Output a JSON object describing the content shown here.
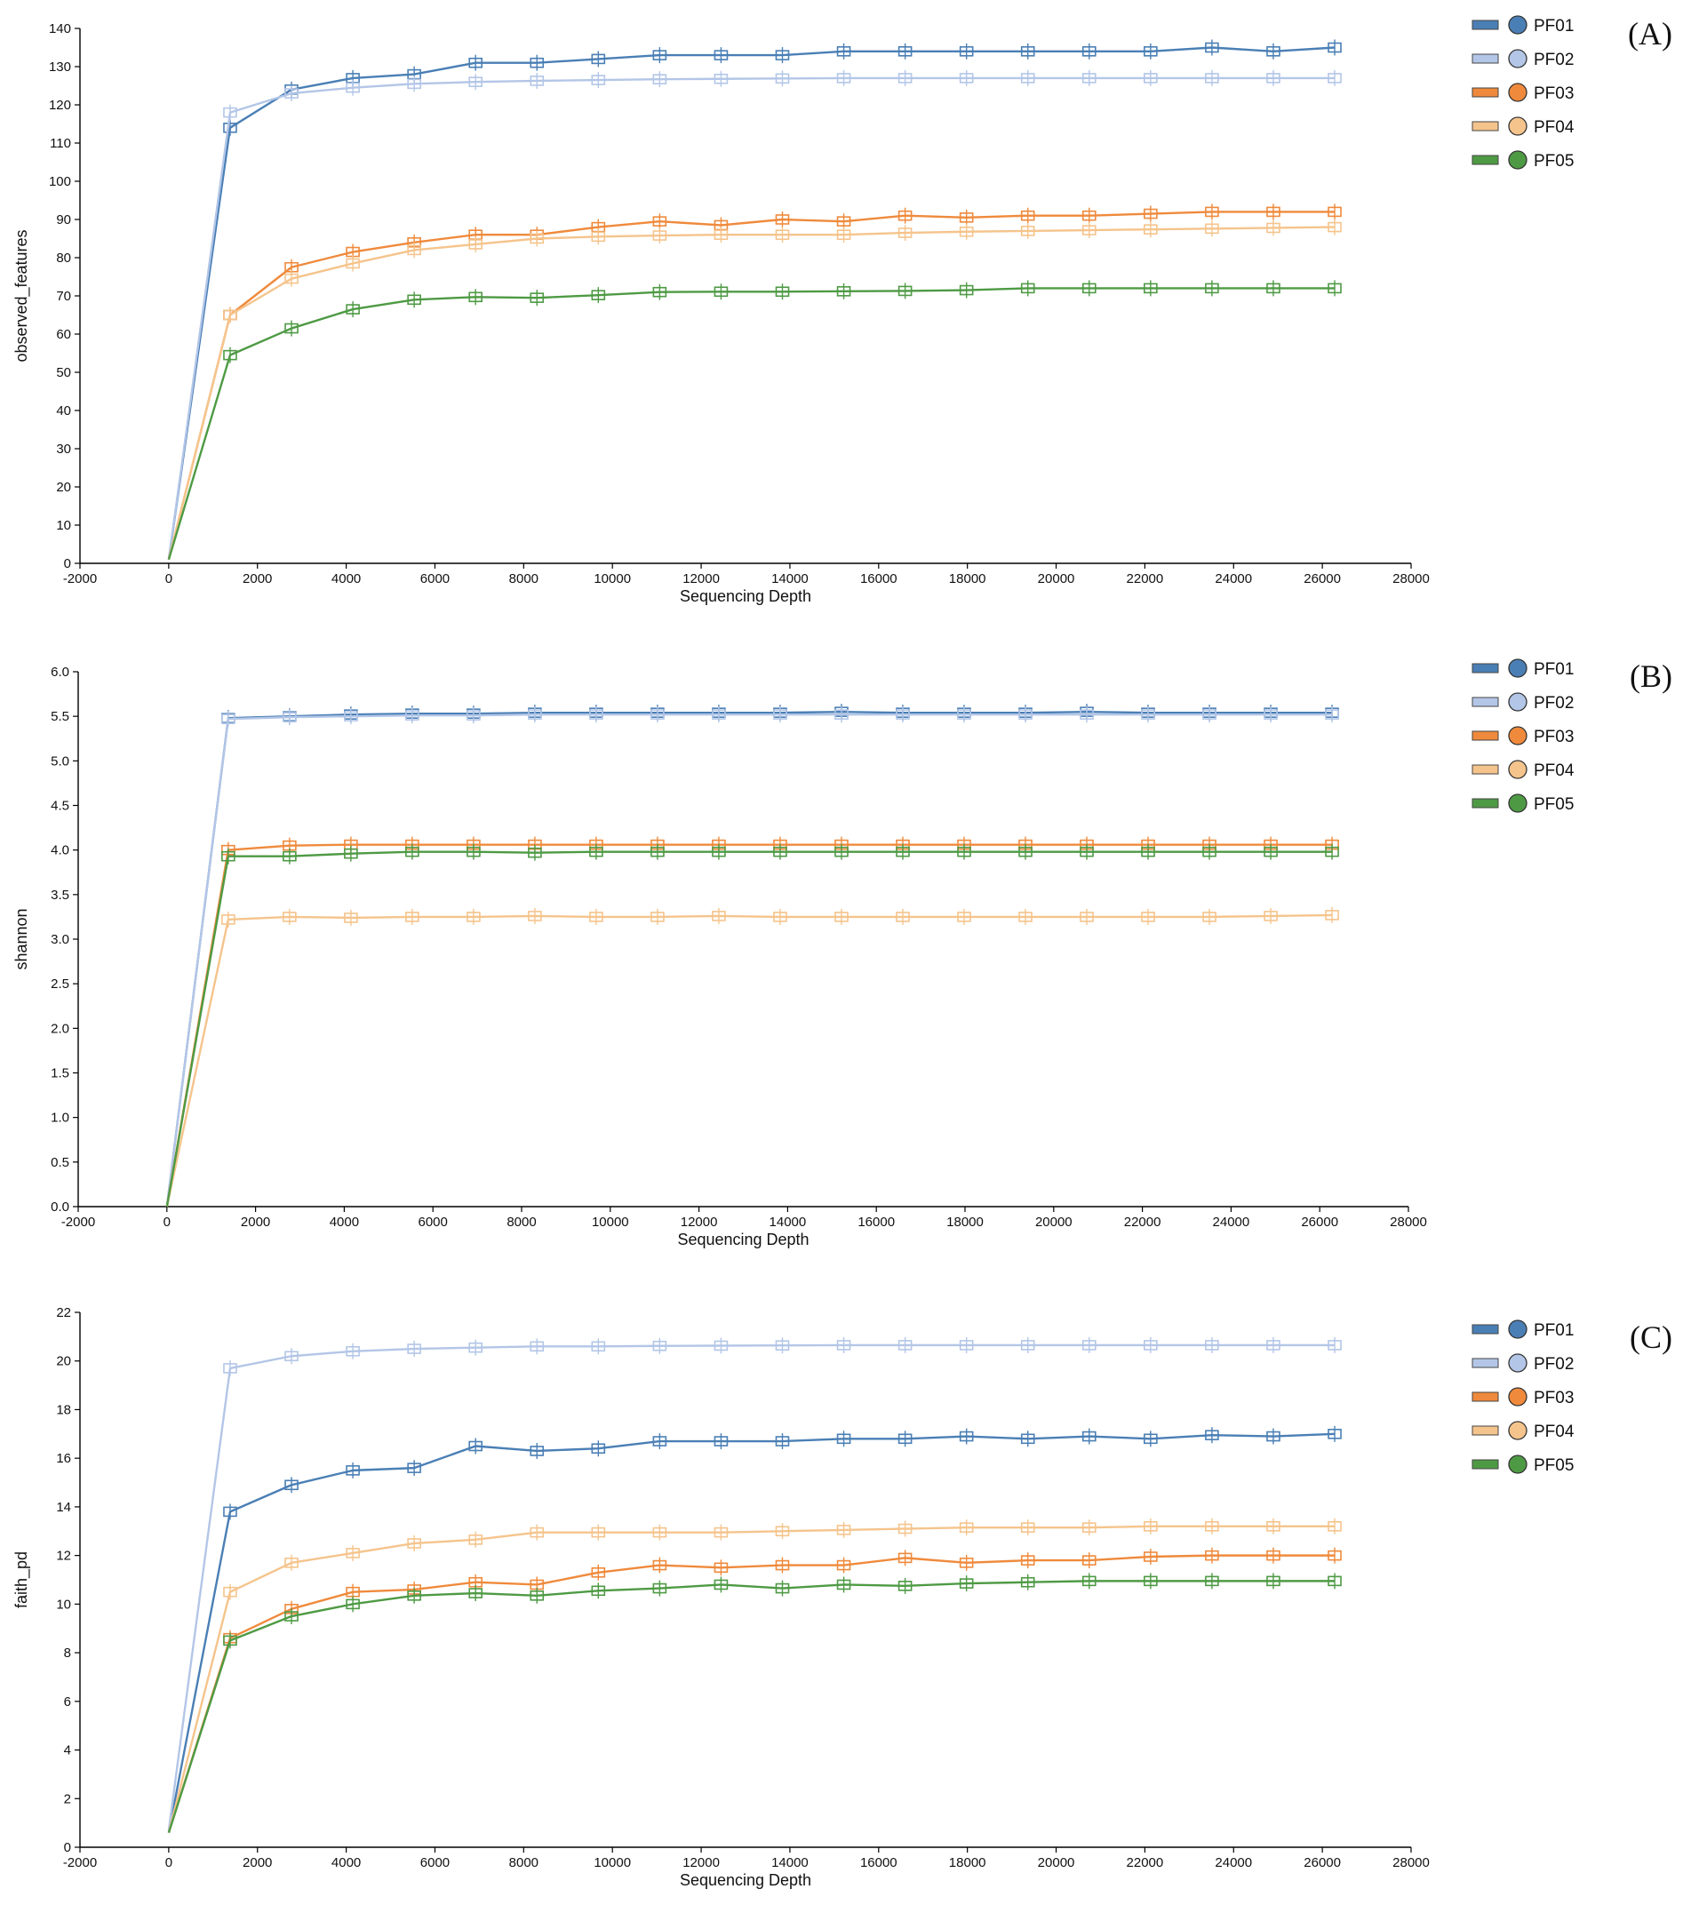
{
  "colors": {
    "PF01": "#4a7fb5",
    "PF02": "#b3c6e7",
    "PF03": "#ef8a3c",
    "PF04": "#f5c48c",
    "PF05": "#4e9a44"
  },
  "legend_icons": [
    "line-swatch",
    "circle-marker"
  ],
  "chart_data": [
    {
      "type": "line",
      "panel_label": "(A)",
      "xlabel": "Sequencing Depth",
      "ylabel": "observed_features",
      "xlim": [
        -2000,
        28000
      ],
      "ylim": [
        0,
        140
      ],
      "xticks": [
        "-2000",
        "0",
        "2000",
        "4000",
        "6000",
        "8000",
        "10000",
        "12000",
        "14000",
        "16000",
        "18000",
        "20000",
        "22000",
        "24000",
        "26000",
        "28000"
      ],
      "yticks": [
        "0",
        "10",
        "20",
        "30",
        "40",
        "50",
        "60",
        "70",
        "80",
        "90",
        "100",
        "110",
        "120",
        "130",
        "140"
      ],
      "grid": false,
      "legend_position": "right",
      "x": [
        1,
        1384,
        2767,
        4150,
        5533,
        6916,
        8299,
        9682,
        11065,
        12448,
        13831,
        15214,
        16597,
        17980,
        19363,
        20746,
        22129,
        23512,
        24895,
        26278
      ],
      "series": [
        {
          "name": "PF01",
          "values": [
            1,
            114,
            124,
            127,
            128,
            131,
            131,
            132,
            133,
            133,
            133,
            134,
            134,
            134,
            134,
            134,
            134,
            135,
            134,
            135
          ]
        },
        {
          "name": "PF02",
          "values": [
            1,
            118,
            123,
            124.5,
            125.5,
            126,
            126.3,
            126.5,
            126.7,
            126.8,
            126.9,
            127,
            127,
            127,
            127,
            127,
            127,
            127,
            127,
            127
          ]
        },
        {
          "name": "PF03",
          "values": [
            1,
            65,
            77.5,
            81.5,
            84,
            86,
            86,
            88,
            89.5,
            88.5,
            90,
            89.5,
            91,
            90.5,
            91,
            91,
            91.5,
            92,
            92,
            92
          ]
        },
        {
          "name": "PF04",
          "values": [
            1,
            65,
            74.5,
            78.5,
            82,
            83.5,
            85,
            85.5,
            85.8,
            86,
            86,
            86,
            86.5,
            86.8,
            87,
            87.2,
            87.4,
            87.6,
            87.8,
            88
          ]
        },
        {
          "name": "PF05",
          "values": [
            1,
            54.5,
            61.5,
            66.5,
            69,
            69.7,
            69.5,
            70.2,
            71,
            71.1,
            71.1,
            71.2,
            71.3,
            71.5,
            72,
            72,
            72,
            72,
            72,
            72
          ]
        }
      ]
    },
    {
      "type": "line",
      "panel_label": "(B)",
      "xlabel": "Sequencing Depth",
      "ylabel": "shannon",
      "xlim": [
        -2000,
        28000
      ],
      "ylim": [
        0,
        6
      ],
      "xticks": [
        "-2000",
        "0",
        "2000",
        "4000",
        "6000",
        "8000",
        "10000",
        "12000",
        "14000",
        "16000",
        "18000",
        "20000",
        "22000",
        "24000",
        "26000",
        "28000"
      ],
      "yticks": [
        "0.0",
        "0.5",
        "1.0",
        "1.5",
        "2.0",
        "2.5",
        "3.0",
        "3.5",
        "4.0",
        "4.5",
        "5.0",
        "5.5",
        "6.0"
      ],
      "grid": false,
      "legend_position": "right",
      "x": [
        1,
        1384,
        2767,
        4150,
        5533,
        6916,
        8299,
        9682,
        11065,
        12448,
        13831,
        15214,
        16597,
        17980,
        19363,
        20746,
        22129,
        23512,
        24895,
        26278
      ],
      "series": [
        {
          "name": "PF01",
          "values": [
            0,
            5.48,
            5.5,
            5.52,
            5.53,
            5.53,
            5.54,
            5.54,
            5.54,
            5.54,
            5.54,
            5.55,
            5.54,
            5.54,
            5.54,
            5.55,
            5.54,
            5.54,
            5.54,
            5.54
          ]
        },
        {
          "name": "PF02",
          "values": [
            0,
            5.47,
            5.49,
            5.5,
            5.51,
            5.51,
            5.52,
            5.52,
            5.52,
            5.52,
            5.52,
            5.52,
            5.52,
            5.52,
            5.52,
            5.52,
            5.52,
            5.52,
            5.52,
            5.52
          ]
        },
        {
          "name": "PF03",
          "values": [
            0,
            4.0,
            4.05,
            4.06,
            4.06,
            4.06,
            4.06,
            4.06,
            4.06,
            4.06,
            4.06,
            4.06,
            4.06,
            4.06,
            4.06,
            4.06,
            4.06,
            4.06,
            4.06,
            4.06
          ]
        },
        {
          "name": "PF04",
          "values": [
            0,
            3.22,
            3.25,
            3.24,
            3.25,
            3.25,
            3.26,
            3.25,
            3.25,
            3.26,
            3.25,
            3.25,
            3.25,
            3.25,
            3.25,
            3.25,
            3.25,
            3.25,
            3.26,
            3.27
          ]
        },
        {
          "name": "PF05",
          "values": [
            0,
            3.93,
            3.93,
            3.96,
            3.98,
            3.98,
            3.97,
            3.98,
            3.98,
            3.98,
            3.98,
            3.98,
            3.98,
            3.98,
            3.98,
            3.98,
            3.98,
            3.98,
            3.98,
            3.98
          ]
        }
      ]
    },
    {
      "type": "line",
      "panel_label": "(C)",
      "xlabel": "Sequencing Depth",
      "ylabel": "faith_pd",
      "xlim": [
        -2000,
        28000
      ],
      "ylim": [
        0,
        22
      ],
      "xticks": [
        "-2000",
        "0",
        "2000",
        "4000",
        "6000",
        "8000",
        "10000",
        "12000",
        "14000",
        "16000",
        "18000",
        "20000",
        "22000",
        "24000",
        "26000",
        "28000"
      ],
      "yticks": [
        "0",
        "2",
        "4",
        "6",
        "8",
        "10",
        "12",
        "14",
        "16",
        "18",
        "20",
        "22"
      ],
      "grid": false,
      "legend_position": "right",
      "x": [
        1,
        1384,
        2767,
        4150,
        5533,
        6916,
        8299,
        9682,
        11065,
        12448,
        13831,
        15214,
        16597,
        17980,
        19363,
        20746,
        22129,
        23512,
        24895,
        26278
      ],
      "series": [
        {
          "name": "PF01",
          "values": [
            0.6,
            13.8,
            14.9,
            15.5,
            15.6,
            16.5,
            16.3,
            16.4,
            16.7,
            16.7,
            16.7,
            16.8,
            16.8,
            16.9,
            16.8,
            16.9,
            16.8,
            16.95,
            16.9,
            17.0
          ]
        },
        {
          "name": "PF02",
          "values": [
            0.7,
            19.7,
            20.2,
            20.4,
            20.5,
            20.55,
            20.6,
            20.6,
            20.62,
            20.63,
            20.64,
            20.65,
            20.65,
            20.65,
            20.65,
            20.65,
            20.65,
            20.65,
            20.65,
            20.65
          ]
        },
        {
          "name": "PF03",
          "values": [
            0.6,
            8.6,
            9.8,
            10.5,
            10.6,
            10.9,
            10.8,
            11.3,
            11.6,
            11.5,
            11.6,
            11.6,
            11.9,
            11.7,
            11.8,
            11.8,
            11.95,
            12.0,
            12.0,
            12.0
          ]
        },
        {
          "name": "PF04",
          "values": [
            0.6,
            10.5,
            11.7,
            12.1,
            12.5,
            12.65,
            12.95,
            12.95,
            12.95,
            12.95,
            13.0,
            13.05,
            13.1,
            13.15,
            13.15,
            13.15,
            13.2,
            13.2,
            13.2,
            13.2
          ]
        },
        {
          "name": "PF05",
          "values": [
            0.6,
            8.5,
            9.5,
            10.0,
            10.35,
            10.45,
            10.35,
            10.55,
            10.65,
            10.8,
            10.65,
            10.8,
            10.75,
            10.85,
            10.9,
            10.95,
            10.95,
            10.95,
            10.95,
            10.95
          ]
        }
      ]
    }
  ]
}
